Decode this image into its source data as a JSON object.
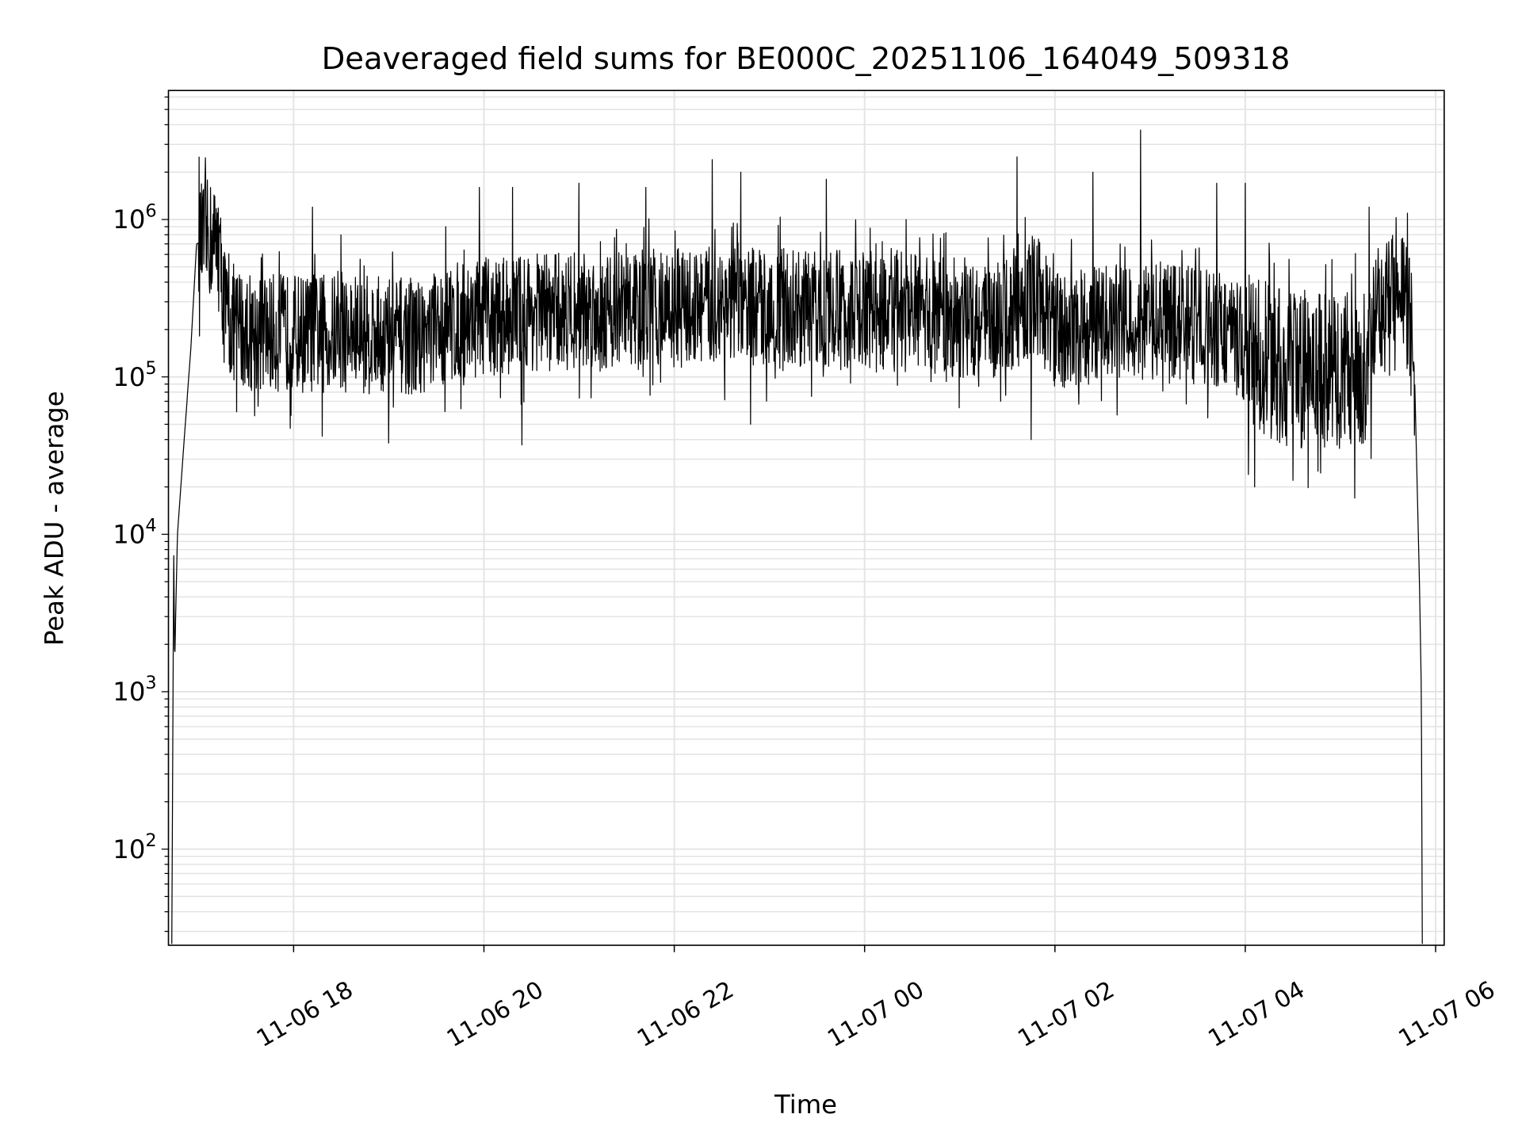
{
  "chart_data": {
    "type": "line",
    "title": "Deaveraged field sums for BE000C_20251106_164049_509318",
    "xlabel": "Time",
    "ylabel": "Peak ADU - average",
    "yscale": "log",
    "ylim": [
      24.5,
      6600000
    ],
    "xlim_hours_from_1106_0000": [
      16.685,
      30.09
    ],
    "x_units": "hours since 2025-11-06 00:00",
    "grid": "major and minor, light gray",
    "line_color": "#000000",
    "grid_color": "#e3e3e3",
    "xticks": [
      {
        "x": 18,
        "label": "11-06 18"
      },
      {
        "x": 20,
        "label": "11-06 20"
      },
      {
        "x": 22,
        "label": "11-06 22"
      },
      {
        "x": 24,
        "label": "11-07 00"
      },
      {
        "x": 26,
        "label": "11-07 02"
      },
      {
        "x": 28,
        "label": "11-07 04"
      },
      {
        "x": 30,
        "label": "11-07 06"
      }
    ],
    "yticks": [
      {
        "y": 100,
        "base": "10",
        "exp": "2"
      },
      {
        "y": 1000,
        "base": "10",
        "exp": "3"
      },
      {
        "y": 10000,
        "base": "10",
        "exp": "4"
      },
      {
        "y": 100000,
        "base": "10",
        "exp": "5"
      },
      {
        "y": 1000000,
        "base": "10",
        "exp": "6"
      }
    ],
    "baseline": [
      [
        16.72,
        25
      ],
      [
        16.74,
        8000
      ],
      [
        16.75,
        1500
      ],
      [
        16.78,
        10000
      ],
      [
        16.85,
        40000
      ],
      [
        16.92,
        150000
      ],
      [
        16.98,
        700000
      ],
      [
        17.1,
        750000
      ],
      [
        17.2,
        700000
      ],
      [
        17.3,
        230000
      ],
      [
        17.6,
        190000
      ],
      [
        18.5,
        190000
      ],
      [
        19.3,
        180000
      ],
      [
        19.8,
        230000
      ],
      [
        20.5,
        260000
      ],
      [
        21.5,
        270000
      ],
      [
        22.5,
        280000
      ],
      [
        23.5,
        270000
      ],
      [
        24.5,
        250000
      ],
      [
        25.5,
        230000
      ],
      [
        25.8,
        350000
      ],
      [
        26.0,
        200000
      ],
      [
        27.0,
        230000
      ],
      [
        27.8,
        200000
      ],
      [
        28.0,
        150000
      ],
      [
        28.5,
        110000
      ],
      [
        29.0,
        110000
      ],
      [
        29.3,
        120000
      ],
      [
        29.45,
        300000
      ],
      [
        29.6,
        450000
      ],
      [
        29.7,
        350000
      ],
      [
        29.78,
        100000
      ],
      [
        29.83,
        5000
      ],
      [
        29.85,
        1000
      ],
      [
        29.86,
        25
      ]
    ],
    "spikes": [
      [
        17.2,
        1100000
      ],
      [
        18.2,
        1200000
      ],
      [
        18.5,
        800000
      ],
      [
        19.0,
        1400000
      ],
      [
        19.6,
        900000
      ],
      [
        19.95,
        1600000
      ],
      [
        20.3,
        1600000
      ],
      [
        21.0,
        1700000
      ],
      [
        21.7,
        1600000
      ],
      [
        22.4,
        2400000
      ],
      [
        22.7,
        2000000
      ],
      [
        23.6,
        1800000
      ],
      [
        25.6,
        2500000
      ],
      [
        26.4,
        2000000
      ],
      [
        26.9,
        3700000
      ],
      [
        27.7,
        1700000
      ],
      [
        28.0,
        1700000
      ],
      [
        29.3,
        1200000
      ]
    ],
    "dips": [
      [
        17.4,
        60000
      ],
      [
        18.3,
        42000
      ],
      [
        19.0,
        38000
      ],
      [
        20.4,
        37000
      ],
      [
        22.8,
        50000
      ],
      [
        25.75,
        40000
      ],
      [
        28.1,
        20000
      ],
      [
        28.5,
        22000
      ],
      [
        29.15,
        17000
      ]
    ]
  }
}
